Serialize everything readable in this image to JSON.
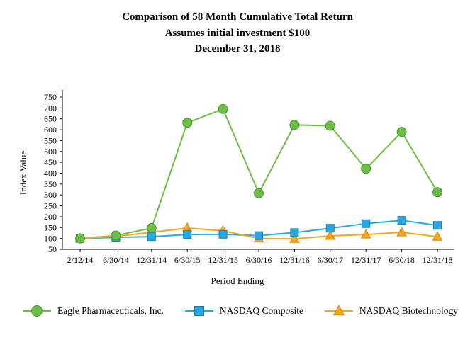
{
  "title": {
    "line1": "Comparison of  58 Month Cumulative Total Return",
    "line2": "Assumes initial investment $100",
    "line3": "December 31, 2018"
  },
  "chart_data": {
    "type": "line",
    "title": "Comparison of 58 Month Cumulative Total Return, Assumes initial investment $100, December 31, 2018",
    "xlabel": "Period Ending",
    "ylabel": "Index Value",
    "ylim": [
      50,
      750
    ],
    "ytick_step": 50,
    "grid": false,
    "legend_position": "bottom",
    "x": [
      "2/12/14",
      "6/30/14",
      "12/31/14",
      "6/30/15",
      "12/31/15",
      "6/30/16",
      "12/31/16",
      "6/30/17",
      "12/31/17",
      "6/30/18",
      "12/31/18"
    ],
    "series": [
      {
        "name": "Eagle Pharmaceuticals, Inc.",
        "marker": "circle",
        "color": "#6FBE44",
        "stroke": "#3F9C35",
        "values": [
          100,
          113,
          148,
          632,
          695,
          308,
          622,
          618,
          420,
          590,
          313
        ]
      },
      {
        "name": "NASDAQ Composite",
        "marker": "square",
        "color": "#29A8E0",
        "stroke": "#1B7FBF",
        "values": [
          100,
          105,
          108,
          118,
          119,
          113,
          127,
          147,
          168,
          183,
          160
        ]
      },
      {
        "name": "NASDAQ Biotechnology",
        "marker": "triangle",
        "color": "#F5A623",
        "stroke": "#D88E0A",
        "values": [
          100,
          110,
          128,
          148,
          135,
          100,
          98,
          112,
          118,
          128,
          108
        ]
      }
    ]
  }
}
